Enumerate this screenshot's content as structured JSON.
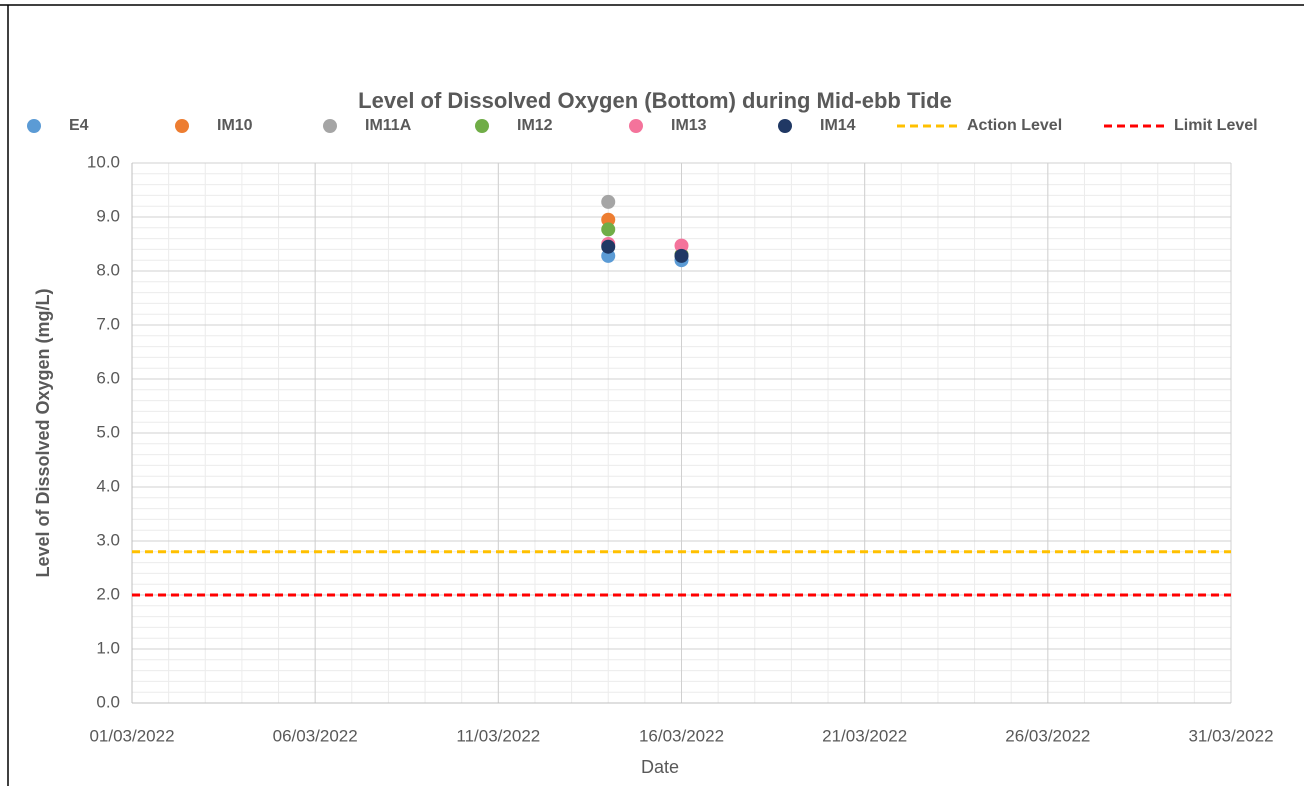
{
  "chart_data": {
    "type": "scatter",
    "title": "Level of Dissolved Oxygen (Bottom) during Mid-ebb Tide",
    "x_label": "Date",
    "y_label": "Level of Dissolved Oxygen (mg/L)",
    "xlim": [
      "01/03/2022",
      "31/03/2022"
    ],
    "xticks": [
      "01/03/2022",
      "06/03/2022",
      "11/03/2022",
      "16/03/2022",
      "21/03/2022",
      "26/03/2022",
      "31/03/2022"
    ],
    "ylim": [
      0,
      10
    ],
    "yticks": [
      {
        "value": 0,
        "label": "0.0"
      },
      {
        "value": 1,
        "label": "1.0"
      },
      {
        "value": 2,
        "label": "2.0"
      },
      {
        "value": 3,
        "label": "3.0"
      },
      {
        "value": 4,
        "label": "4.0"
      },
      {
        "value": 5,
        "label": "5.0"
      },
      {
        "value": 6,
        "label": "6.0"
      },
      {
        "value": 7,
        "label": "7.0"
      },
      {
        "value": 8,
        "label": "8.0"
      },
      {
        "value": 9,
        "label": "9.0"
      },
      {
        "value": 10,
        "label": "10.0"
      }
    ],
    "grid": true,
    "minor_grid": {
      "x": 1,
      "y": 0.2
    },
    "legend": "top",
    "series": [
      {
        "name": "E4",
        "color": "#5b9bd5",
        "x": [
          "14/03/2022",
          "16/03/2022"
        ],
        "values": [
          8.28,
          8.2
        ]
      },
      {
        "name": "IM10",
        "color": "#ed7d31",
        "x": [
          "14/03/2022",
          "16/03/2022"
        ],
        "values": [
          8.95,
          8.3
        ]
      },
      {
        "name": "IM11A",
        "color": "#a5a5a5",
        "x": [
          "14/03/2022",
          "16/03/2022"
        ],
        "values": [
          9.28,
          8.3
        ]
      },
      {
        "name": "IM12",
        "color": "#70ad47",
        "x": [
          "14/03/2022",
          "16/03/2022"
        ],
        "values": [
          8.77,
          8.3
        ]
      },
      {
        "name": "IM13",
        "color": "#f4739b",
        "x": [
          "14/03/2022",
          "16/03/2022"
        ],
        "values": [
          8.5,
          8.47
        ]
      },
      {
        "name": "IM14",
        "color": "#203864",
        "x": [
          "14/03/2022",
          "16/03/2022"
        ],
        "values": [
          8.45,
          8.28
        ]
      },
      {
        "name": "Action Level",
        "color": "#ffc000",
        "style": "dashed",
        "x": [
          "01/03/2022",
          "31/03/2022"
        ],
        "values": [
          2.8,
          2.8
        ]
      },
      {
        "name": "Limit Level",
        "color": "#ff0000",
        "style": "dashed",
        "x": [
          "01/03/2022",
          "31/03/2022"
        ],
        "values": [
          2,
          2
        ]
      }
    ]
  }
}
